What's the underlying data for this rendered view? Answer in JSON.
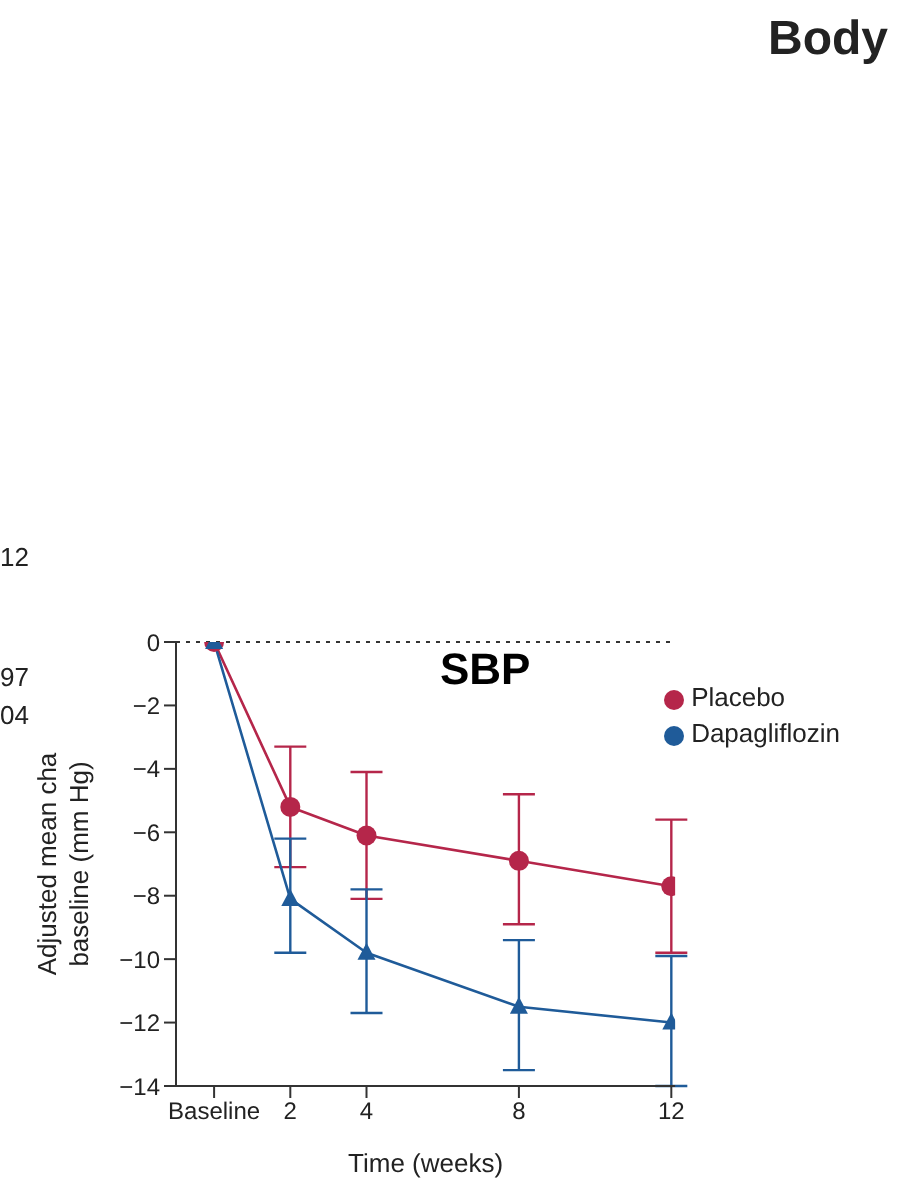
{
  "chart_data": {
    "type": "line",
    "title": "SBP",
    "xlabel": "Time (weeks)",
    "ylabel": "Adjusted mean cha\nbaseline (mm Hg)",
    "annotations": [
      "Body",
      "97",
      "04",
      "12"
    ],
    "x": [
      0,
      2,
      4,
      8,
      12
    ],
    "xlim": [
      -1,
      12.1
    ],
    "xticks": [
      {
        "value": 0,
        "label": "Baseline"
      },
      2,
      4,
      8,
      12
    ],
    "ylim": [
      -14,
      0
    ],
    "yticks": [
      0,
      -2,
      -4,
      -6,
      -8,
      -10,
      -12,
      -14
    ],
    "series": [
      {
        "name": "Placebo",
        "color": "#b5264a",
        "marker": "circle",
        "values": [
          0,
          -5.2,
          -6.1,
          -6.9,
          -7.7
        ],
        "errors": [
          null,
          [
            -7.1,
            -3.3
          ],
          [
            -8.1,
            -4.1
          ],
          [
            -8.9,
            -4.8
          ],
          [
            -9.8,
            -5.6
          ]
        ]
      },
      {
        "name": "Dapagliflozin",
        "color": "#1f5b99",
        "marker": "triangle",
        "values": [
          0,
          -8.1,
          -9.8,
          -11.5,
          -12.0
        ],
        "errors": [
          null,
          [
            -9.8,
            -6.2
          ],
          [
            -11.7,
            -7.8
          ],
          [
            -13.5,
            -9.4
          ],
          [
            -14.0,
            -9.9
          ]
        ]
      }
    ],
    "ref_lines": [
      {
        "axis": "y",
        "value": 0,
        "line_style": "dotted",
        "color": "#333333"
      }
    ],
    "legend": "top right"
  }
}
